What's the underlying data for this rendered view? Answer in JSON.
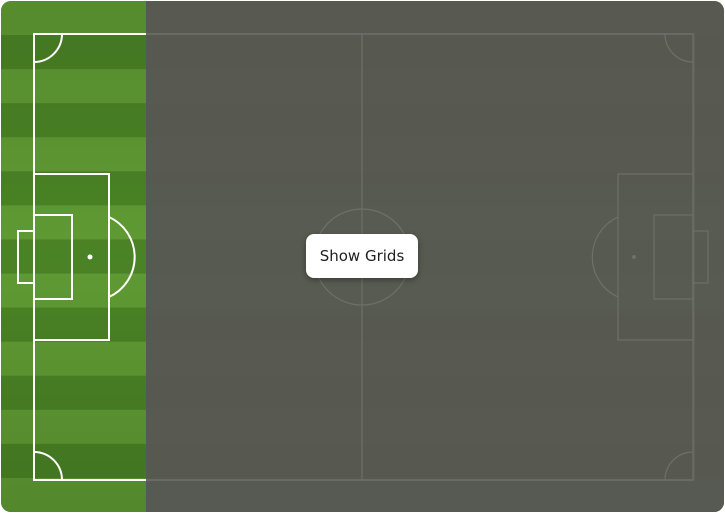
{
  "pitch": {
    "grass_light": "#5f9a33",
    "grass_dark": "#4a8325",
    "line_color": "#ffffff",
    "overlay_color": "#585854",
    "overlay_line_color": "#6e6e6a"
  },
  "controls": {
    "show_grids_label": "Show Grids"
  }
}
